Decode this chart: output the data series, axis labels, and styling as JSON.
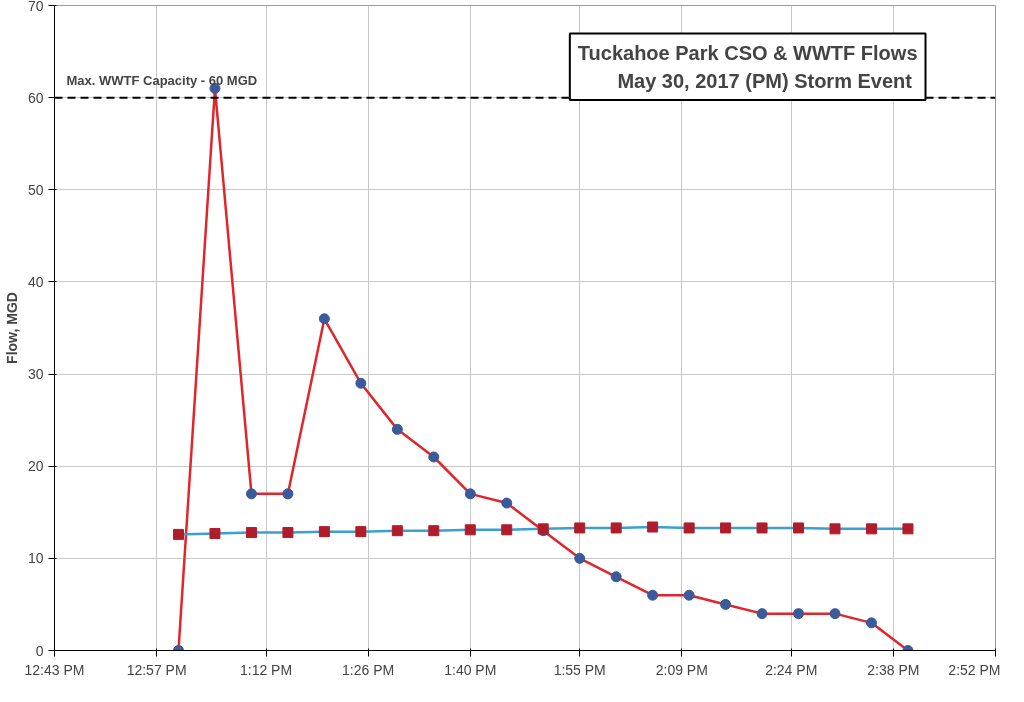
{
  "chart_data": {
    "type": "line",
    "title": "Tuckahoe Park CSO & WWTF Flows",
    "subtitle": "May 30, 2017  (PM) Storm Event",
    "ylabel": "Flow, MGD",
    "x": [
      13,
      13.0833,
      13.1667,
      13.25,
      13.3333,
      13.4167,
      13.5,
      13.5833,
      13.6667,
      13.75,
      13.8333,
      13.9167,
      14,
      14.0833,
      14.1667,
      14.25,
      14.3333,
      14.4167,
      14.5,
      14.5833,
      14.6667
    ],
    "series": [
      {
        "color": "#e0262b",
        "colors": [
          "#3b5a9a",
          "#3b5a9a",
          "#3b5a9a",
          "#3b5a9a",
          "#3b5a9a",
          "#3b5a9a",
          "#3b5a9a",
          "#3b5a9a",
          "#3b5a9a",
          "#3b5a9a",
          "#3b5a9a",
          "#3b5a9a",
          "#3b5a9a",
          "#3b5a9a",
          "#3b5a9a",
          "#3b5a9a",
          "#3b5a9a",
          "#3b5a9a",
          "#3b5a9a",
          "#3b5a9a",
          "#3b5a9a"
        ],
        "marker": "circle",
        "values": [
          0,
          61,
          17,
          17,
          36,
          29,
          24,
          21,
          17,
          16,
          13,
          10,
          8,
          6,
          6,
          5,
          4,
          4,
          4,
          3,
          0
        ]
      },
      {
        "color": "#3ba0cf",
        "colors": [
          "#b01c2a",
          "#b01c2a",
          "#b01c2a",
          "#b01c2a",
          "#b01c2a",
          "#b01c2a",
          "#b01c2a",
          "#b01c2a",
          "#b01c2a",
          "#b01c2a",
          "#b01c2a",
          "#b01c2a",
          "#b01c2a",
          "#b01c2a",
          "#b01c2a",
          "#b01c2a",
          "#b01c2a",
          "#b01c2a",
          "#b01c2a",
          "#b01c2a",
          "#b01c2a"
        ],
        "marker": "square",
        "values": [
          12.6,
          12.7,
          12.8,
          12.8,
          12.9,
          12.9,
          13.0,
          13.0,
          13.1,
          13.1,
          13.2,
          13.3,
          13.3,
          13.4,
          13.3,
          13.3,
          13.3,
          13.3,
          13.2,
          13.2,
          13.2
        ]
      }
    ],
    "xlim": [
      12.7167,
      14.8667
    ],
    "xticks": [
      {
        "value": 12.7167,
        "label": "12:43 PM"
      },
      {
        "value": 12.95,
        "label": "12:57 PM"
      },
      {
        "value": 13.2,
        "label": "1:12 PM"
      },
      {
        "value": 13.4333,
        "label": "1:26 PM"
      },
      {
        "value": 13.6667,
        "label": "1:40 PM"
      },
      {
        "value": 13.9167,
        "label": "1:55 PM"
      },
      {
        "value": 14.15,
        "label": "2:09 PM"
      },
      {
        "value": 14.4,
        "label": "2:24 PM"
      },
      {
        "value": 14.6333,
        "label": "2:38 PM"
      },
      {
        "value": 14.8667,
        "label": "2:52 PM"
      }
    ],
    "ylim": [
      0,
      70
    ],
    "yticks": [
      0,
      10,
      20,
      30,
      40,
      50,
      60,
      70
    ],
    "ref_lines": [
      {
        "axis": "y",
        "value": 60,
        "label": "Max. WWTF Capacity - 60 MGD",
        "color": "#000000",
        "line_style": "dashed"
      }
    ],
    "grid": true
  }
}
